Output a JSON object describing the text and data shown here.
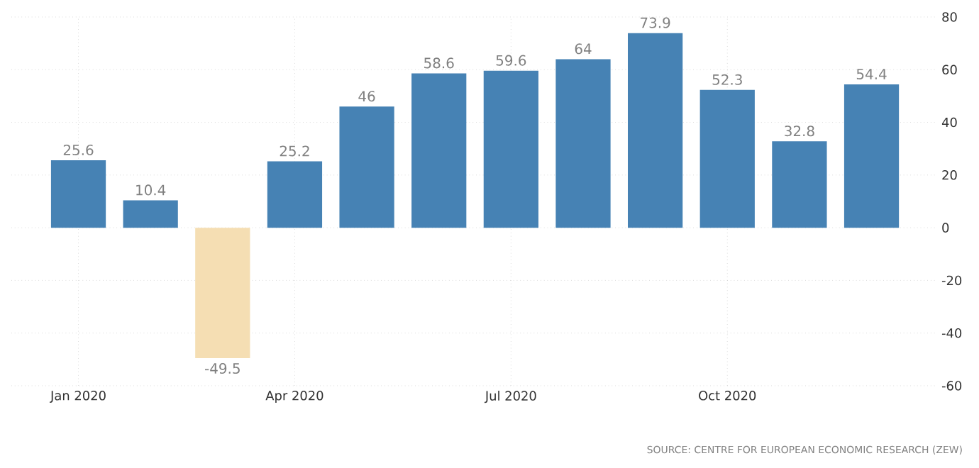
{
  "chart_data": {
    "type": "bar",
    "categories": [
      "Jan 2020",
      null,
      null,
      "Apr 2020",
      null,
      null,
      "Jul 2020",
      null,
      null,
      "Oct 2020",
      null,
      null
    ],
    "values": [
      25.6,
      10.4,
      -49.5,
      25.2,
      46,
      58.6,
      59.6,
      64,
      73.9,
      52.3,
      32.8,
      54.4
    ],
    "colors": [
      "#4682b4",
      "#4682b4",
      "#f5deb3",
      "#4682b4",
      "#4682b4",
      "#4682b4",
      "#4682b4",
      "#4682b4",
      "#4682b4",
      "#4682b4",
      "#4682b4",
      "#4682b4"
    ],
    "ylim": [
      -60,
      80
    ],
    "yticks": [
      -60,
      -40,
      -20,
      0,
      20,
      40,
      60,
      80
    ],
    "grid": true,
    "data_labels": true,
    "annotations": [
      "SOURCE: CENTRE FOR EUROPEAN ECONOMIC RESEARCH (ZEW)"
    ]
  }
}
